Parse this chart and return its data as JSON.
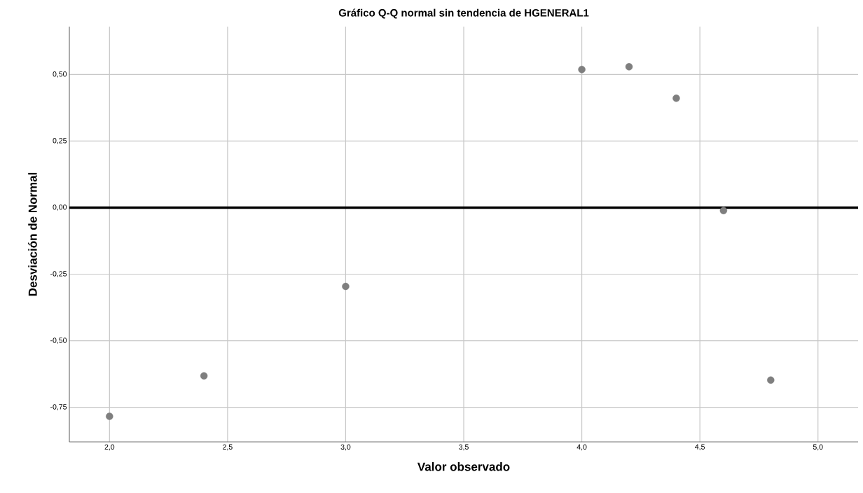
{
  "chart_data": {
    "type": "scatter",
    "title": "Gráfico Q-Q normal sin tendencia de HGENERAL1",
    "xlabel": "Valor observado",
    "ylabel": "Desviación de Normal",
    "x": [
      2.0,
      2.4,
      3.0,
      4.0,
      4.2,
      4.4,
      4.6,
      4.8
    ],
    "series": [
      {
        "color": "#7f7f7f",
        "values": [
          -0.784,
          -0.632,
          -0.296,
          0.519,
          0.529,
          0.411,
          -0.011,
          -0.648
        ]
      }
    ],
    "xlim": [
      1.83,
      5.17
    ],
    "ylim": [
      -0.88,
      0.68
    ],
    "xticks": [
      {
        "value": 2.0,
        "label": "2,0"
      },
      {
        "value": 2.5,
        "label": "2,5"
      },
      {
        "value": 3.0,
        "label": "3,0"
      },
      {
        "value": 3.5,
        "label": "3,5"
      },
      {
        "value": 4.0,
        "label": "4,0"
      },
      {
        "value": 4.5,
        "label": "4,5"
      },
      {
        "value": 5.0,
        "label": "5,0"
      }
    ],
    "yticks": [
      {
        "value": -0.75,
        "label": "-0,75"
      },
      {
        "value": -0.5,
        "label": "-0,50"
      },
      {
        "value": -0.25,
        "label": "-0,25"
      },
      {
        "value": 0.0,
        "label": "0,00"
      },
      {
        "value": 0.25,
        "label": "0,25"
      },
      {
        "value": 0.5,
        "label": "0,50"
      }
    ],
    "ref_lines": [
      {
        "axis": "y",
        "value": 0,
        "color": "#000000"
      }
    ],
    "grid": true,
    "marker": "circle"
  }
}
